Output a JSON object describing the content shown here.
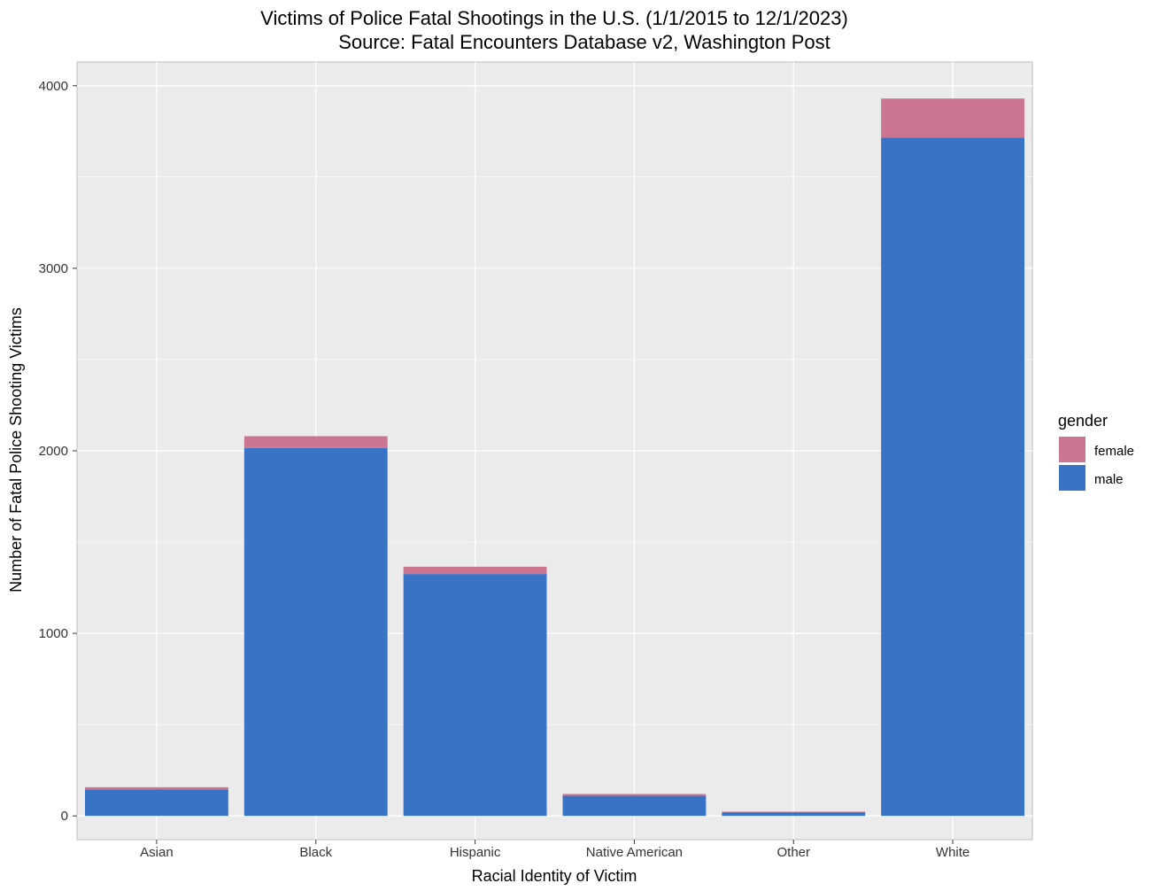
{
  "chart_data": {
    "type": "bar",
    "stacked": true,
    "title": "Victims of Police Fatal Shootings in the U.S. (1/1/2015 to 12/1/2023)",
    "subtitle": "Source: Fatal Encounters Database v2, Washington Post",
    "xlabel": "Racial Identity of Victim",
    "ylabel": "Number of Fatal Police Shooting Victims",
    "categories": [
      "Asian",
      "Black",
      "Hispanic",
      "Native American",
      "Other",
      "White"
    ],
    "series": [
      {
        "name": "male",
        "color": "#3973C6",
        "values": [
          145,
          2015,
          1325,
          110,
          20,
          3715
        ]
      },
      {
        "name": "female",
        "color": "#CC7591",
        "values": [
          12,
          65,
          40,
          10,
          3,
          215
        ]
      }
    ],
    "ylim": [
      -130,
      4130
    ],
    "yticks": [
      0,
      1000,
      2000,
      3000,
      4000
    ],
    "grid": true,
    "legend": {
      "title": "gender",
      "placement": "right",
      "entries": [
        "female",
        "male"
      ]
    },
    "colors": {
      "panel_bg": "#EBEBEB",
      "grid": "#FFFFFF",
      "female": "#CC7591",
      "male": "#3973C6"
    }
  }
}
